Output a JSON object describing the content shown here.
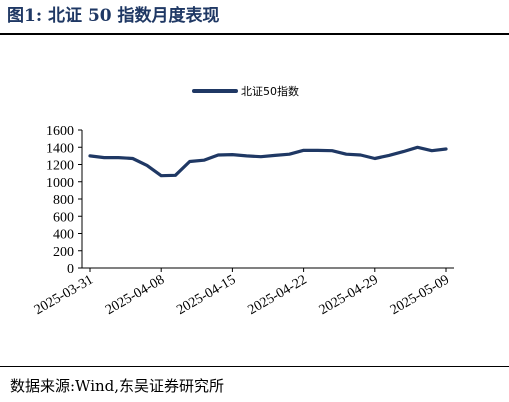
{
  "figure": {
    "title": "图1:  北证 50 指数月度表现",
    "source": "数据来源:Wind,东吴证券研究所"
  },
  "colors": {
    "title": "#1f3864",
    "series": "#1f3864"
  },
  "chart_data": {
    "type": "line",
    "title": "",
    "xlabel": "",
    "ylabel": "",
    "ylim": [
      0,
      1600
    ],
    "yticks": [
      0,
      200,
      400,
      600,
      800,
      1000,
      1200,
      1400,
      1600
    ],
    "grid": false,
    "legend_position": "top-center",
    "x": [
      "2025-03-31",
      "2025-04-01",
      "2025-04-02",
      "2025-04-03",
      "2025-04-07",
      "2025-04-08",
      "2025-04-09",
      "2025-04-10",
      "2025-04-11",
      "2025-04-14",
      "2025-04-15",
      "2025-04-16",
      "2025-04-17",
      "2025-04-18",
      "2025-04-21",
      "2025-04-22",
      "2025-04-23",
      "2025-04-24",
      "2025-04-25",
      "2025-04-28",
      "2025-04-29",
      "2025-04-30",
      "2025-05-06",
      "2025-05-07",
      "2025-05-08",
      "2025-05-09"
    ],
    "xtick_labels": [
      "2025-03-31",
      "2025-04-08",
      "2025-04-15",
      "2025-04-22",
      "2025-04-29",
      "2025-05-09"
    ],
    "series": [
      {
        "name": "北证50指数",
        "values": [
          1300,
          1280,
          1280,
          1270,
          1190,
          1070,
          1075,
          1235,
          1250,
          1310,
          1315,
          1300,
          1290,
          1305,
          1320,
          1365,
          1363,
          1360,
          1320,
          1310,
          1270,
          1305,
          1350,
          1400,
          1360,
          1380
        ]
      }
    ]
  }
}
